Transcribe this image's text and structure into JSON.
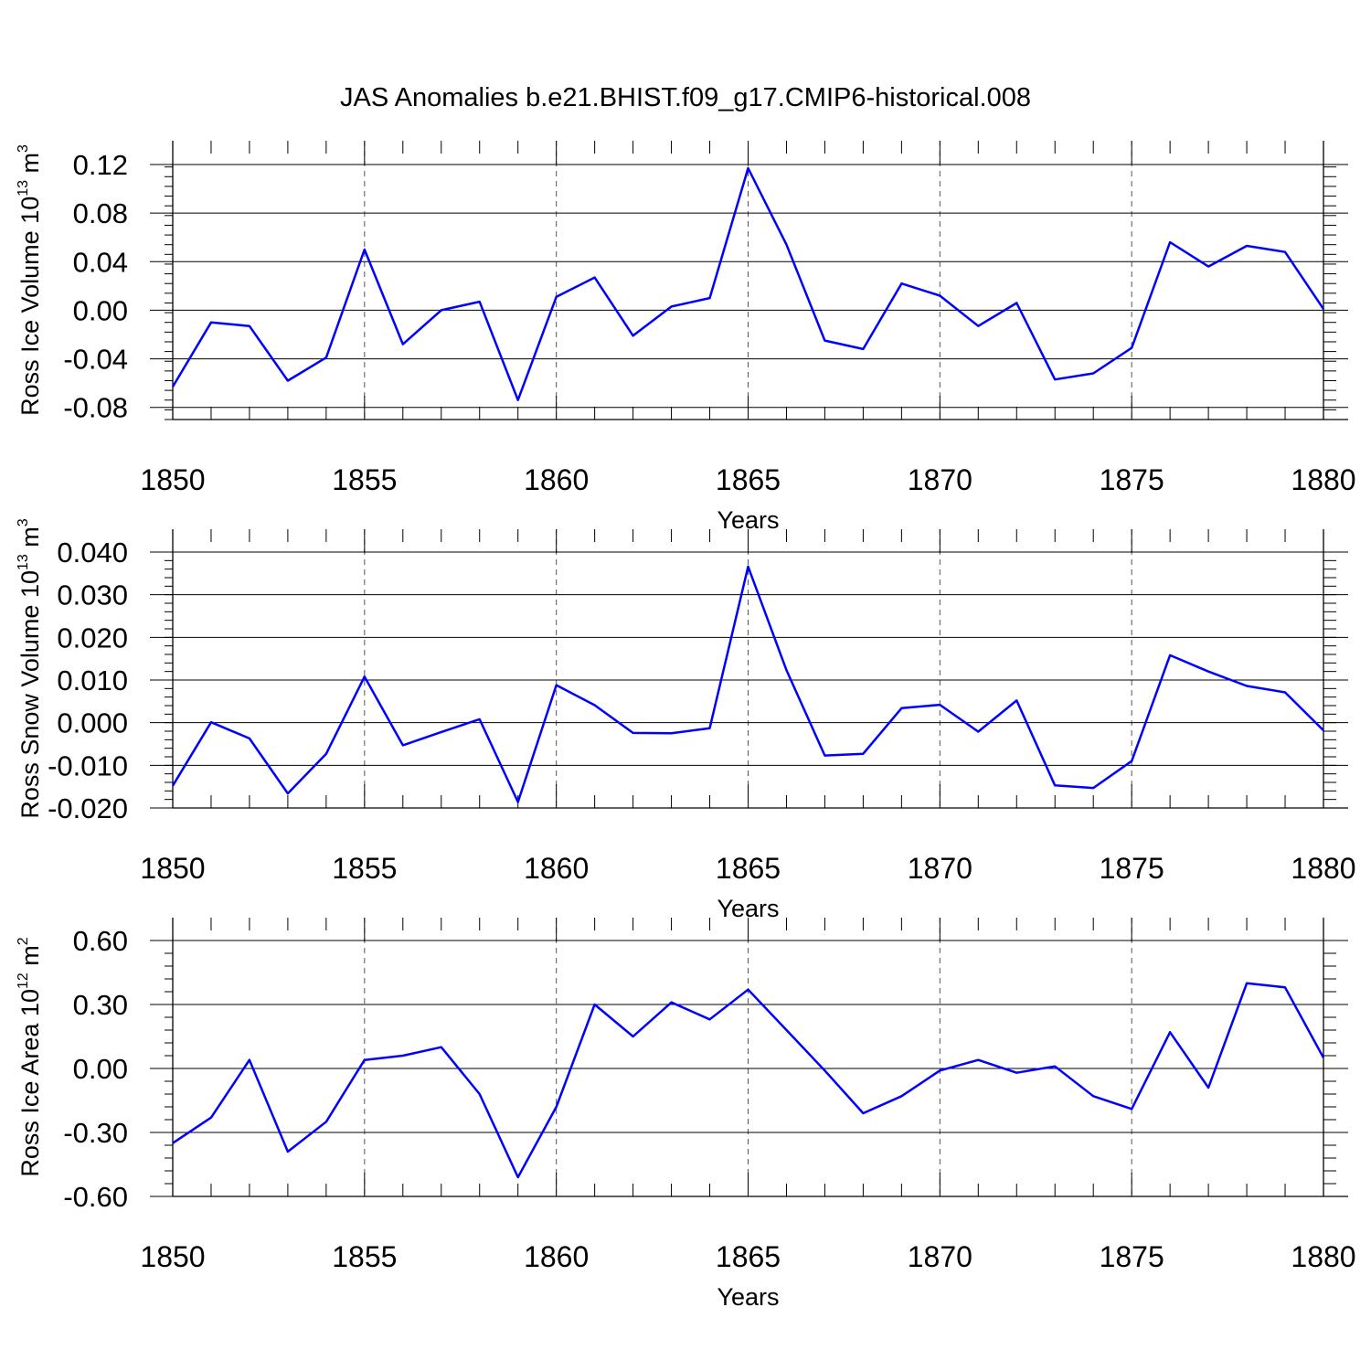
{
  "title": "JAS Anomalies b.e21.BHIST.f09_g17.CMIP6-historical.008",
  "line_color": "#0000ff",
  "chart_data": [
    {
      "type": "line",
      "ylabel": {
        "text": "Ross Ice Volume 10",
        "exp": "13",
        "unit": " m",
        "unit_exp": "3"
      },
      "xlabel": "Years",
      "xlim": [
        1850,
        1880
      ],
      "ylim": [
        -0.09,
        0.12
      ],
      "xticks": [
        1850,
        1855,
        1860,
        1865,
        1870,
        1875,
        1880
      ],
      "yticks": [
        -0.08,
        -0.04,
        0.0,
        0.04,
        0.08,
        0.12
      ],
      "ytick_labels": [
        "-0.08",
        "-0.04",
        "0.00",
        "0.04",
        "0.08",
        "0.12"
      ],
      "grid": "vertical dashed at major x ticks",
      "x": [
        1850,
        1851,
        1852,
        1853,
        1854,
        1855,
        1856,
        1857,
        1858,
        1859,
        1860,
        1861,
        1862,
        1863,
        1864,
        1865,
        1866,
        1867,
        1868,
        1869,
        1870,
        1871,
        1872,
        1873,
        1874,
        1875,
        1876,
        1877,
        1878,
        1879,
        1880
      ],
      "y": [
        -0.063,
        -0.01,
        -0.013,
        -0.058,
        -0.039,
        0.05,
        -0.028,
        0.0,
        0.007,
        -0.074,
        0.011,
        0.027,
        -0.021,
        0.003,
        0.01,
        0.117,
        0.054,
        -0.025,
        -0.032,
        0.022,
        0.012,
        -0.013,
        0.006,
        -0.057,
        -0.052,
        -0.031,
        0.056,
        0.036,
        0.053,
        0.048,
        0.001
      ]
    },
    {
      "type": "line",
      "ylabel": {
        "text": "Ross Snow Volume 10",
        "exp": "13",
        "unit": " m",
        "unit_exp": "3"
      },
      "xlabel": "Years",
      "xlim": [
        1850,
        1880
      ],
      "ylim": [
        -0.02,
        0.04
      ],
      "xticks": [
        1850,
        1855,
        1860,
        1865,
        1870,
        1875,
        1880
      ],
      "yticks": [
        -0.02,
        -0.01,
        0.0,
        0.01,
        0.02,
        0.03,
        0.04
      ],
      "ytick_labels": [
        "-0.020",
        "-0.010",
        "0.000",
        "0.010",
        "0.020",
        "0.030",
        "0.040"
      ],
      "grid": "vertical dashed at major x ticks",
      "x": [
        1850,
        1851,
        1852,
        1853,
        1854,
        1855,
        1856,
        1857,
        1858,
        1859,
        1860,
        1861,
        1862,
        1863,
        1864,
        1865,
        1866,
        1867,
        1868,
        1869,
        1870,
        1871,
        1872,
        1873,
        1874,
        1875,
        1876,
        1877,
        1878,
        1879,
        1880
      ],
      "y": [
        -0.0148,
        0.0001,
        -0.0037,
        -0.0166,
        -0.0073,
        0.0108,
        -0.0053,
        -0.0022,
        0.0008,
        -0.0186,
        0.0088,
        0.0041,
        -0.0024,
        -0.0025,
        -0.0013,
        0.0366,
        0.0123,
        -0.0077,
        -0.0073,
        0.0034,
        0.0042,
        -0.0021,
        0.0052,
        -0.0147,
        -0.0153,
        -0.009,
        0.0158,
        0.012,
        0.0086,
        0.0071,
        -0.0018
      ]
    },
    {
      "type": "line",
      "ylabel": {
        "text": "Ross Ice Area 10",
        "exp": "12",
        "unit": " m",
        "unit_exp": "2"
      },
      "xlabel": "Years",
      "xlim": [
        1850,
        1880
      ],
      "ylim": [
        -0.6,
        0.6
      ],
      "xticks": [
        1850,
        1855,
        1860,
        1865,
        1870,
        1875,
        1880
      ],
      "yticks": [
        -0.6,
        -0.3,
        0.0,
        0.3,
        0.6
      ],
      "ytick_labels": [
        "-0.60",
        "-0.30",
        "0.00",
        "0.30",
        "0.60"
      ],
      "grid": "vertical dashed at major x ticks",
      "x": [
        1850,
        1851,
        1852,
        1853,
        1854,
        1855,
        1856,
        1857,
        1858,
        1859,
        1860,
        1861,
        1862,
        1863,
        1864,
        1865,
        1866,
        1867,
        1868,
        1869,
        1870,
        1871,
        1872,
        1873,
        1874,
        1875,
        1876,
        1877,
        1878,
        1879,
        1880
      ],
      "y": [
        -0.35,
        -0.23,
        0.04,
        -0.39,
        -0.25,
        0.04,
        0.06,
        0.1,
        -0.12,
        -0.51,
        -0.18,
        0.3,
        0.15,
        0.31,
        0.23,
        0.37,
        0.18,
        -0.01,
        -0.21,
        -0.13,
        -0.01,
        0.04,
        -0.02,
        0.01,
        -0.13,
        -0.19,
        0.17,
        -0.09,
        0.4,
        0.38,
        0.05
      ]
    }
  ]
}
